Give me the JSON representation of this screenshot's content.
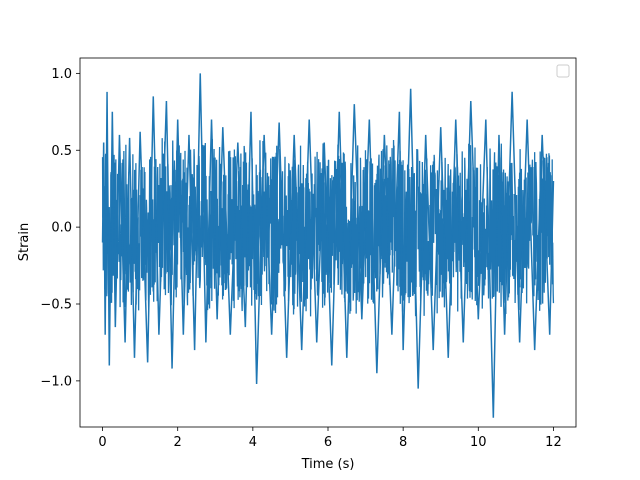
{
  "chart_data": {
    "type": "line",
    "title": "",
    "xlabel": "Time (s)",
    "ylabel": "Strain",
    "xlim": [
      -0.6,
      12.6
    ],
    "ylim": [
      -1.3,
      1.1
    ],
    "xticks": [
      0,
      2,
      4,
      6,
      8,
      10,
      12
    ],
    "xtick_labels": [
      "0",
      "2",
      "4",
      "6",
      "8",
      "10",
      "12"
    ],
    "yticks": [
      -1.0,
      -0.5,
      0.0,
      0.5,
      1.0
    ],
    "ytick_labels": [
      "−1.0",
      "−0.5",
      "0.0",
      "0.5",
      "1.0"
    ],
    "grid": false,
    "legend": {
      "location": "top-right",
      "entries": []
    },
    "series": [
      {
        "color": "#1f77b4",
        "x_range": [
          0,
          12
        ],
        "y_range": [
          -1.24,
          1.0
        ],
        "typical_band": [
          -0.5,
          0.5
        ],
        "x": [
          0.0,
          0.03,
          0.07,
          0.12,
          0.18,
          0.26,
          0.34,
          0.45,
          0.6,
          0.72,
          0.85,
          1.0,
          1.2,
          1.35,
          1.5,
          1.7,
          1.85,
          2.0,
          2.15,
          2.3,
          2.45,
          2.6,
          2.75,
          2.9,
          3.05,
          3.2,
          3.4,
          3.6,
          3.8,
          3.95,
          4.1,
          4.3,
          4.5,
          4.7,
          4.9,
          5.1,
          5.3,
          5.5,
          5.7,
          5.9,
          6.1,
          6.3,
          6.5,
          6.7,
          6.9,
          7.1,
          7.3,
          7.5,
          7.7,
          7.9,
          8.0,
          8.2,
          8.4,
          8.6,
          8.8,
          9.0,
          9.2,
          9.4,
          9.6,
          9.8,
          10.0,
          10.2,
          10.4,
          10.55,
          10.7,
          10.9,
          11.1,
          11.3,
          11.5,
          11.7,
          11.9,
          12.0
        ],
        "y": [
          -0.1,
          0.55,
          -0.7,
          0.88,
          -0.9,
          0.75,
          -0.65,
          0.6,
          -0.75,
          0.58,
          -0.85,
          0.62,
          -0.88,
          0.85,
          -0.7,
          0.82,
          -0.92,
          0.7,
          -0.7,
          0.6,
          -0.8,
          1.0,
          -0.75,
          0.7,
          -0.6,
          0.65,
          -0.7,
          0.55,
          -0.65,
          0.75,
          -1.02,
          0.6,
          -0.7,
          0.68,
          -0.85,
          0.6,
          -0.8,
          0.7,
          -0.75,
          0.55,
          -0.9,
          0.75,
          -0.85,
          0.8,
          -0.6,
          0.7,
          -0.95,
          0.6,
          -0.7,
          0.75,
          -0.8,
          0.9,
          -1.05,
          0.6,
          -0.8,
          0.65,
          -0.85,
          0.7,
          -0.75,
          0.82,
          -0.6,
          0.7,
          -1.24,
          0.6,
          -0.7,
          0.88,
          -0.75,
          0.7,
          -0.8,
          0.6,
          -0.7,
          0.3
        ]
      }
    ]
  }
}
